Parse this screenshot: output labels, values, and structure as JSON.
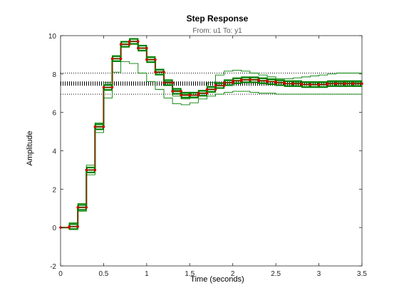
{
  "chart_data": {
    "type": "line",
    "title": "Step Response",
    "subtitle": "From: u1  To: y1",
    "xlabel": "Time (seconds)",
    "ylabel": "Amplitude",
    "xlim": [
      0,
      3.5
    ],
    "ylim": [
      -2,
      10
    ],
    "x_ticks": [
      0,
      0.5,
      1,
      1.5,
      2,
      2.5,
      3,
      3.5
    ],
    "x_tick_labels": [
      "0",
      "0.5",
      "1",
      "1.5",
      "2",
      "2.5",
      "3",
      "3.5"
    ],
    "y_ticks": [
      -2,
      0,
      2,
      4,
      6,
      8,
      10
    ],
    "y_tick_labels": [
      "-2",
      "0",
      "2",
      "4",
      "6",
      "8",
      "10"
    ],
    "grid": false,
    "legend": "none",
    "sample_time": 0.1,
    "steady_state": 7.5,
    "steady_state_bounds": [
      6.95,
      8.05
    ],
    "series": [
      {
        "color": "#d40000",
        "style": "step",
        "marker": "dot",
        "x": [
          0,
          0.1,
          0.2,
          0.3,
          0.4,
          0.5,
          0.6,
          0.7,
          0.8,
          0.9,
          1.0,
          1.1,
          1.2,
          1.3,
          1.4,
          1.5,
          1.6,
          1.7,
          1.8,
          1.9,
          2.0,
          2.1,
          2.2,
          2.3,
          2.4,
          2.5,
          2.6,
          2.7,
          2.8,
          2.9,
          3.0,
          3.1,
          3.2,
          3.3,
          3.4
        ],
        "values": [
          0,
          0.05,
          1.05,
          3.0,
          5.25,
          7.3,
          8.8,
          9.55,
          9.7,
          9.35,
          8.75,
          8.1,
          7.55,
          7.1,
          6.9,
          6.9,
          7.0,
          7.2,
          7.4,
          7.55,
          7.65,
          7.7,
          7.7,
          7.65,
          7.6,
          7.55,
          7.5,
          7.5,
          7.45,
          7.45,
          7.45,
          7.5,
          7.5,
          7.5,
          7.5
        ]
      },
      {
        "color": "#008000",
        "style": "step",
        "marker": "box",
        "x": [
          0,
          0.1,
          0.2,
          0.3,
          0.4,
          0.5,
          0.6,
          0.7,
          0.8,
          0.9,
          1.0,
          1.1,
          1.2,
          1.3,
          1.4,
          1.5,
          1.6,
          1.7,
          1.8,
          1.9,
          2.0,
          2.1,
          2.2,
          2.3,
          2.4,
          2.5,
          2.6,
          2.7,
          2.8,
          2.9,
          3.0,
          3.1,
          3.2,
          3.3,
          3.4
        ],
        "values": [
          0,
          0.05,
          1.05,
          3.0,
          5.25,
          7.3,
          8.8,
          9.55,
          9.7,
          9.35,
          8.75,
          8.1,
          7.55,
          7.1,
          6.9,
          6.9,
          7.0,
          7.2,
          7.4,
          7.55,
          7.65,
          7.7,
          7.7,
          7.65,
          7.6,
          7.55,
          7.5,
          7.5,
          7.45,
          7.45,
          7.45,
          7.5,
          7.5,
          7.5,
          7.5
        ]
      },
      {
        "color": "#008000",
        "style": "step",
        "marker": "none",
        "x": [
          0,
          0.1,
          0.2,
          0.3,
          0.4,
          0.5,
          0.6,
          0.7,
          0.8,
          0.9,
          1.0,
          1.1,
          1.2,
          1.3,
          1.4,
          1.5,
          1.6,
          1.7,
          1.8,
          1.9,
          2.0,
          2.1,
          2.2,
          2.3,
          2.4,
          2.5,
          2.6,
          2.7,
          2.8,
          2.9,
          3.0,
          3.1,
          3.2,
          3.3,
          3.4
        ],
        "values": [
          0,
          0.25,
          1.25,
          3.25,
          5.45,
          7.55,
          8.95,
          9.7,
          9.85,
          9.5,
          8.9,
          8.2,
          7.6,
          7.15,
          6.95,
          7.0,
          7.1,
          7.3,
          7.5,
          7.65,
          7.75,
          7.8,
          7.8,
          7.75,
          7.7,
          7.65,
          7.6,
          7.55,
          7.55,
          7.55,
          7.55,
          7.55,
          7.55,
          7.55,
          7.55
        ]
      },
      {
        "color": "#008000",
        "style": "step",
        "marker": "none",
        "x": [
          0,
          0.1,
          0.2,
          0.3,
          0.4,
          0.5,
          0.6,
          0.7,
          0.8,
          0.9,
          1.0,
          1.1,
          1.2,
          1.3,
          1.4,
          1.5,
          1.6,
          1.7,
          1.8,
          1.9,
          2.0,
          2.1,
          2.2,
          2.3,
          2.4,
          2.5,
          2.6,
          2.7,
          2.8,
          2.9,
          3.0,
          3.1,
          3.2,
          3.3,
          3.4
        ],
        "values": [
          0,
          -0.1,
          0.85,
          2.75,
          4.95,
          6.75,
          8.1,
          8.65,
          8.55,
          8.05,
          7.6,
          7.2,
          6.75,
          6.45,
          6.4,
          6.5,
          6.7,
          6.85,
          6.95,
          7.05,
          7.1,
          7.1,
          7.05,
          7.0,
          7.0,
          6.95,
          6.95,
          6.95,
          6.95,
          6.95,
          6.95,
          6.95,
          6.95,
          6.95,
          6.95
        ]
      },
      {
        "color": "#008000",
        "style": "step",
        "marker": "none",
        "x": [
          0,
          0.1,
          0.2,
          0.3,
          0.4,
          0.5,
          0.6,
          0.7,
          0.8,
          0.9,
          1.0,
          1.1,
          1.2,
          1.3,
          1.4,
          1.5,
          1.6,
          1.7,
          1.8,
          1.9,
          2.0,
          2.1,
          2.2,
          2.3,
          2.4,
          2.5,
          2.6,
          2.7,
          2.8,
          2.9,
          3.0,
          3.1,
          3.2,
          3.3,
          3.4
        ],
        "values": [
          0,
          0.05,
          1.05,
          3.0,
          5.25,
          7.3,
          8.8,
          9.55,
          9.7,
          9.35,
          8.75,
          8.1,
          7.4,
          6.85,
          6.7,
          6.8,
          7.1,
          7.55,
          7.95,
          8.15,
          8.2,
          8.15,
          8.05,
          7.95,
          7.85,
          7.75,
          7.75,
          7.8,
          7.85,
          7.9,
          7.95,
          8.0,
          8.05,
          8.05,
          8.05
        ]
      }
    ]
  }
}
